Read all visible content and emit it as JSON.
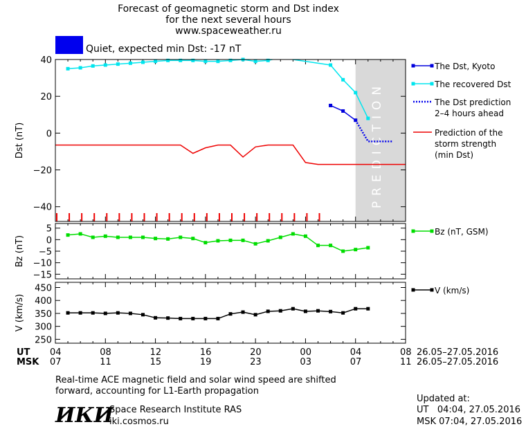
{
  "header": {
    "title_lines": [
      "Forecast of geomagnetic storm and Dst index",
      "for the next several hours",
      "www.spaceweather.ru"
    ],
    "status_text": "Quiet, expected min Dst: -17 nT",
    "status_color": "#0000ee"
  },
  "time_axis": {
    "ut_label": "UT",
    "msk_label": "MSK",
    "ut_ticks": [
      "04",
      "08",
      "12",
      "16",
      "20",
      "00",
      "04",
      "08"
    ],
    "msk_ticks": [
      "07",
      "11",
      "15",
      "19",
      "23",
      "03",
      "07",
      "11"
    ],
    "ut_range": "26.05–27.05.2016",
    "msk_range": "26.05–27.05.2016"
  },
  "chart_data": [
    {
      "type": "line",
      "ylabel": "Dst (nT)",
      "ylim": [
        -48,
        40
      ],
      "yticks": [
        40,
        20,
        0,
        -20,
        -40
      ],
      "xlim": [
        0,
        28
      ],
      "prediction_label": "PREDICTION",
      "prediction_band": [
        24,
        28
      ],
      "legend_position": "right",
      "series": [
        {
          "name": "The Dst, Kyoto",
          "color": "#0000dd",
          "style": "solid-square",
          "x": [
            22,
            23,
            24
          ],
          "y": [
            15,
            12,
            7
          ]
        },
        {
          "name": "The recovered Dst",
          "color": "#00e5ee",
          "style": "solid-square",
          "x": [
            1,
            2,
            3,
            4,
            5,
            6,
            7,
            8,
            9,
            10,
            11,
            12,
            13,
            14,
            15,
            16,
            17,
            18,
            22,
            23,
            24,
            25
          ],
          "y": [
            35,
            35.5,
            36.5,
            37,
            37.5,
            38,
            38.5,
            39,
            39.5,
            39.5,
            39.5,
            39,
            39,
            39.5,
            40,
            39,
            39.5,
            41,
            37,
            29,
            22,
            8
          ]
        },
        {
          "name": "The Dst prediction 2–4 hours ahead",
          "color": "#0000ee",
          "style": "dotted",
          "x": [
            24,
            25,
            26,
            27
          ],
          "y": [
            7,
            -4.5,
            -4.5,
            -4.5
          ]
        },
        {
          "name": "Prediction of the storm strength (min Dst)",
          "color": "#ee0000",
          "style": "solid",
          "x": [
            0,
            1,
            2,
            3,
            4,
            5,
            6,
            7,
            8,
            9,
            10,
            11,
            12,
            13,
            14,
            15,
            16,
            17,
            18,
            19,
            20,
            21,
            22,
            23,
            24,
            25,
            26,
            27,
            28
          ],
          "y": [
            -6.5,
            -6.5,
            -6.5,
            -6.5,
            -6.5,
            -6.5,
            -6.5,
            -6.5,
            -6.5,
            -6.5,
            -6.5,
            -11,
            -8,
            -6.5,
            -6.5,
            -13,
            -7.5,
            -6.5,
            -6.5,
            -6.5,
            -16,
            -17,
            -17,
            -17,
            -17,
            -17,
            -17,
            -17,
            -17
          ]
        }
      ],
      "red_tick_count": 22
    },
    {
      "type": "line",
      "ylabel": "Bz (nT)",
      "ylim": [
        -17,
        7
      ],
      "yticks": [
        5,
        0,
        -5,
        -10,
        -15
      ],
      "xlim": [
        0,
        28
      ],
      "legend_position": "right",
      "series": [
        {
          "name": "Bz (nT, GSM)",
          "color": "#00dd00",
          "x": [
            1,
            2,
            3,
            4,
            5,
            6,
            7,
            8,
            9,
            10,
            11,
            12,
            13,
            14,
            15,
            16,
            17,
            18,
            19,
            20,
            21,
            22,
            23,
            24,
            25
          ],
          "y": [
            2,
            2.5,
            1,
            1.5,
            1,
            1,
            1,
            0.5,
            0.3,
            1,
            0.5,
            -1.3,
            -0.5,
            -0.3,
            -0.3,
            -1.8,
            -0.5,
            1,
            2.5,
            1.5,
            -2.5,
            -2.5,
            -5,
            -4.3,
            -3.5
          ]
        }
      ]
    },
    {
      "type": "line",
      "ylabel": "V (km/s)",
      "ylim": [
        235,
        470
      ],
      "yticks": [
        450,
        400,
        350,
        300,
        250
      ],
      "xlim": [
        0,
        28
      ],
      "legend_position": "right",
      "series": [
        {
          "name": "V (km/s)",
          "color": "#000000",
          "x": [
            1,
            2,
            3,
            4,
            5,
            6,
            7,
            8,
            9,
            10,
            11,
            12,
            13,
            14,
            15,
            16,
            17,
            18,
            19,
            20,
            21,
            22,
            23,
            24,
            25
          ],
          "y": [
            352,
            352,
            352,
            350,
            352,
            350,
            345,
            333,
            332,
            330,
            330,
            330,
            330,
            348,
            355,
            345,
            358,
            360,
            368,
            358,
            360,
            357,
            352,
            368,
            368
          ]
        }
      ]
    }
  ],
  "footer": {
    "note_line1": "Real-time ACE magnetic field and solar wind speed are shifted",
    "note_line2": "forward, accounting for L1-Earth propagation",
    "logo_text": "ИКИ",
    "institute": "Space Research Institute RAS",
    "site": "iki.cosmos.ru",
    "updated_label": "Updated at:",
    "updated_ut": "UT   04:04, 27.05.2016",
    "updated_msk": "MSK 07:04, 27.05.2016"
  }
}
